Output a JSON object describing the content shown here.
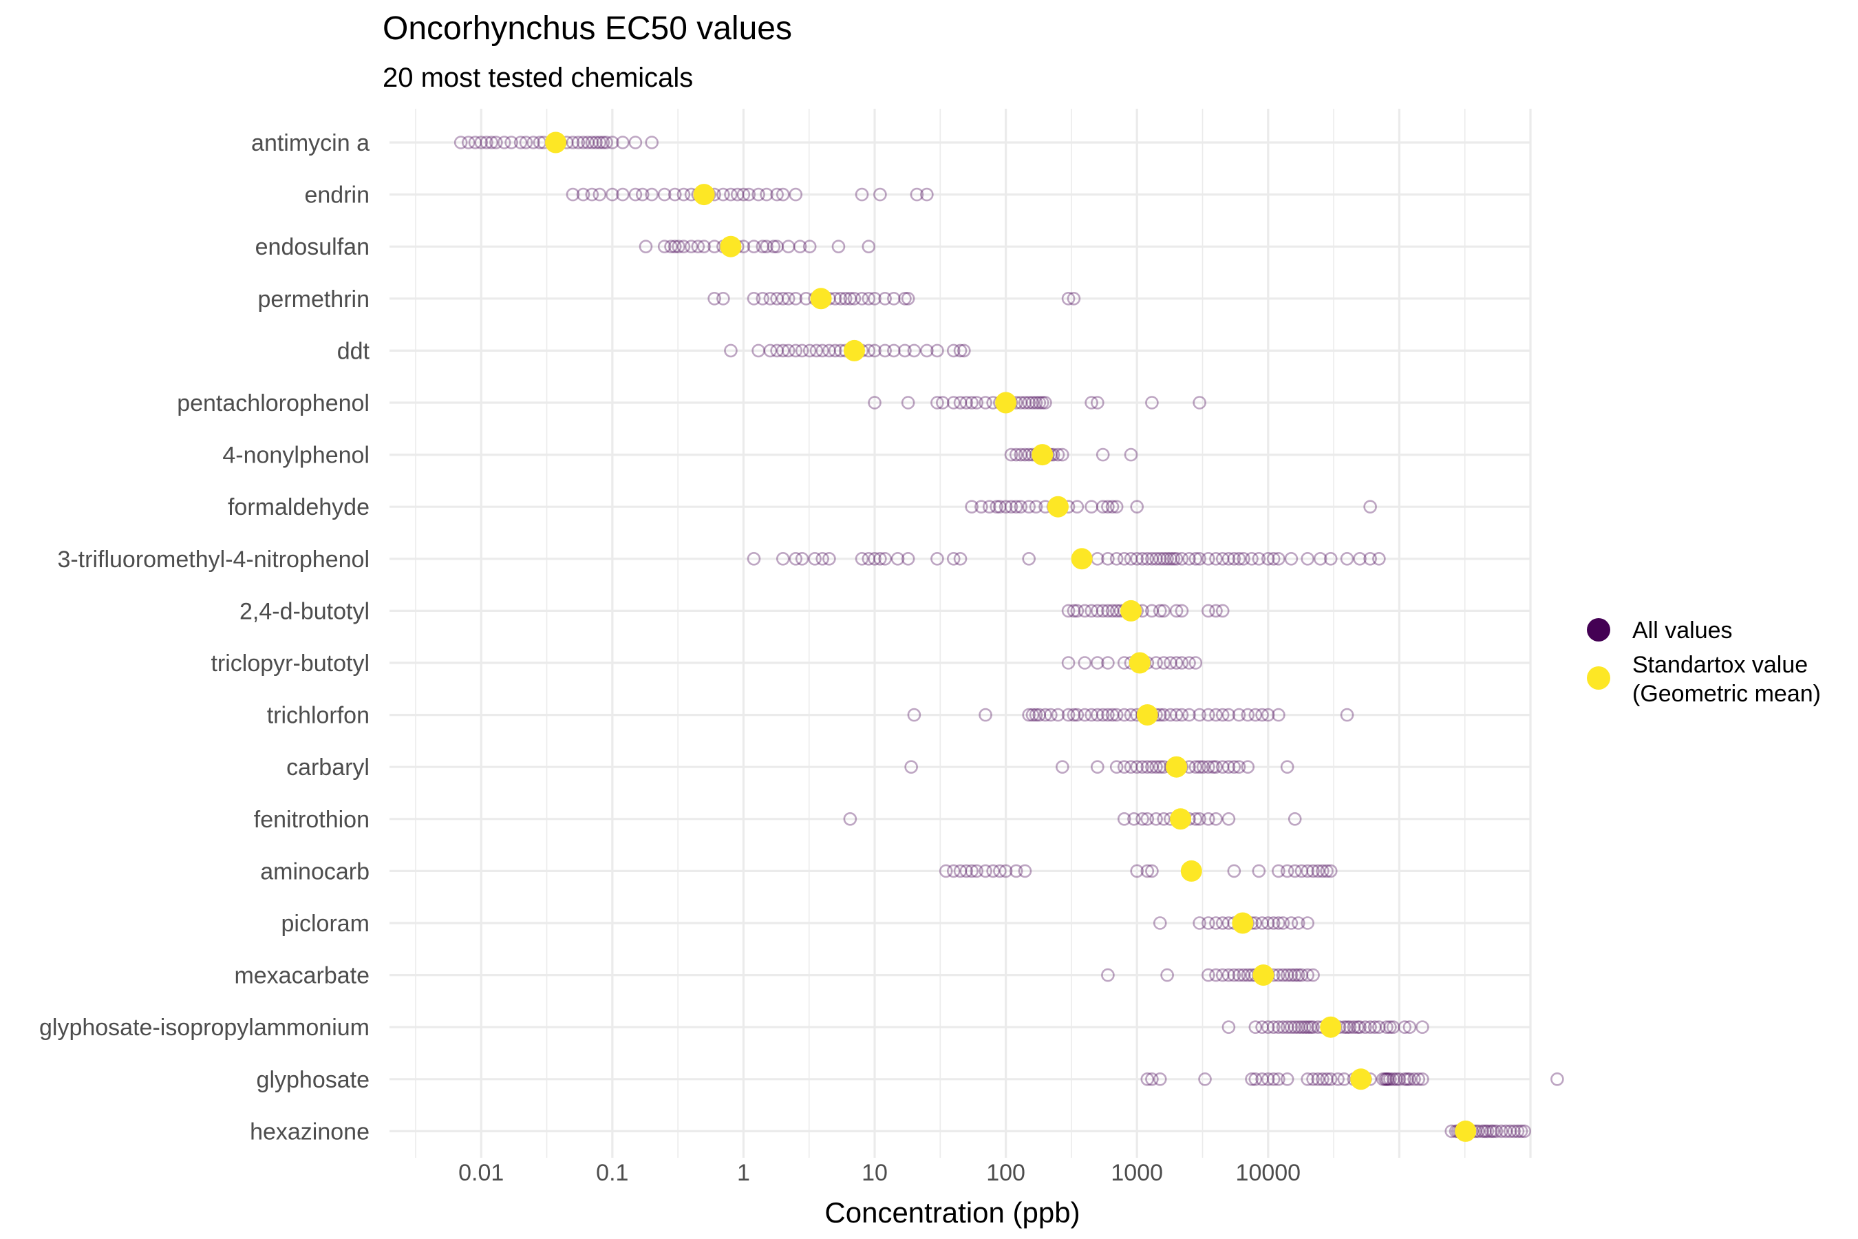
{
  "colors": {
    "all_values": "#440154",
    "standartox": "#FDE725",
    "grid": "#EBEBEB",
    "label": "#4D4D4D"
  },
  "chart_data": {
    "type": "scatter",
    "title": "Oncorhynchus EC50 values",
    "subtitle": "20 most tested chemicals",
    "xlabel": "Concentration (ppb)",
    "ylabel": "",
    "x_scale": "log10",
    "xlim": [
      0.002,
      1000000
    ],
    "x_tick_values": [
      0.01,
      0.1,
      1,
      10,
      100,
      1000,
      10000
    ],
    "x_tick_labels": [
      "0.01",
      "0.1",
      "1",
      "10",
      "100",
      "1000",
      "10000"
    ],
    "grid": true,
    "legend_position": "right",
    "legend": [
      {
        "key": "all",
        "label": "All values"
      },
      {
        "key": "mean",
        "label_lines": [
          "Standartox value",
          "(Geometric mean)"
        ]
      }
    ],
    "categories": [
      "antimycin a",
      "endrin",
      "endosulfan",
      "permethrin",
      "ddt",
      "pentachlorophenol",
      "4-nonylphenol",
      "formaldehyde",
      "3-trifluoromethyl-4-nitrophenol",
      "2,4-d-butotyl",
      "triclopyr-butotyl",
      "trichlorfon",
      "carbaryl",
      "fenitrothion",
      "aminocarb",
      "picloram",
      "mexacarbate",
      "glyphosate-isopropylammonium",
      "glyphosate",
      "hexazinone"
    ],
    "series": [
      {
        "name": "All values",
        "values_by_category": [
          [
            0.007,
            0.008,
            0.009,
            0.01,
            0.011,
            0.012,
            0.013,
            0.015,
            0.017,
            0.02,
            0.022,
            0.025,
            0.028,
            0.03,
            0.035,
            0.04,
            0.045,
            0.05,
            0.055,
            0.06,
            0.065,
            0.07,
            0.075,
            0.08,
            0.085,
            0.09,
            0.1,
            0.12,
            0.15,
            0.2
          ],
          [
            0.05,
            0.06,
            0.07,
            0.08,
            0.1,
            0.12,
            0.15,
            0.17,
            0.2,
            0.25,
            0.3,
            0.35,
            0.4,
            0.45,
            0.5,
            0.55,
            0.6,
            0.7,
            0.8,
            0.9,
            1.0,
            1.1,
            1.3,
            1.5,
            1.8,
            2.0,
            2.5,
            8,
            11,
            21,
            25
          ],
          [
            0.18,
            0.25,
            0.28,
            0.3,
            0.32,
            0.35,
            0.4,
            0.45,
            0.5,
            0.6,
            0.7,
            0.75,
            0.8,
            0.9,
            1.0,
            1.2,
            1.4,
            1.5,
            1.7,
            1.8,
            2.2,
            2.7,
            3.2,
            5.3,
            9
          ],
          [
            0.6,
            0.7,
            1.2,
            1.4,
            1.6,
            1.8,
            2.0,
            2.2,
            2.5,
            3.0,
            3.5,
            4.0,
            4.5,
            5.0,
            5.5,
            6.0,
            6.5,
            7.0,
            8,
            9,
            10,
            12,
            14,
            17,
            18,
            300,
            330
          ],
          [
            0.8,
            1.3,
            1.6,
            1.8,
            2.0,
            2.2,
            2.5,
            2.8,
            3.2,
            3.6,
            4.0,
            4.5,
            5.0,
            5.5,
            6.0,
            7,
            8,
            9,
            10,
            12,
            14,
            17,
            20,
            25,
            30,
            40,
            45,
            48
          ],
          [
            10,
            18,
            30,
            33,
            40,
            45,
            50,
            55,
            60,
            70,
            80,
            90,
            100,
            110,
            120,
            130,
            140,
            150,
            160,
            170,
            180,
            190,
            200,
            450,
            500,
            1300,
            3000
          ],
          [
            110,
            120,
            130,
            140,
            150,
            160,
            170,
            180,
            190,
            200,
            210,
            220,
            230,
            250,
            270,
            550,
            900
          ],
          [
            55,
            65,
            75,
            85,
            90,
            100,
            110,
            120,
            130,
            150,
            170,
            200,
            230,
            260,
            300,
            350,
            450,
            550,
            600,
            650,
            700,
            1000,
            60000
          ],
          [
            1.2,
            2.0,
            2.5,
            2.8,
            3.5,
            4.0,
            4.5,
            8,
            9,
            10,
            11,
            12,
            15,
            18,
            30,
            40,
            45,
            150,
            500,
            600,
            700,
            800,
            900,
            1000,
            1100,
            1200,
            1300,
            1400,
            1500,
            1600,
            1700,
            1800,
            1900,
            2000,
            2200,
            2500,
            2800,
            3000,
            3500,
            4000,
            4500,
            5000,
            5500,
            6000,
            6500,
            7500,
            8500,
            10000,
            11000,
            12000,
            15000,
            20000,
            25000,
            30000,
            40000,
            50000,
            60000,
            70000
          ],
          [
            300,
            330,
            350,
            400,
            450,
            500,
            550,
            600,
            650,
            700,
            750,
            800,
            900,
            1000,
            1100,
            1300,
            1500,
            1600,
            2000,
            2200,
            3500,
            4000,
            4500
          ],
          [
            300,
            400,
            500,
            600,
            800,
            900,
            1000,
            1200,
            1400,
            1600,
            1800,
            2000,
            2200,
            2500,
            2800
          ],
          [
            20,
            70,
            150,
            160,
            170,
            180,
            200,
            220,
            250,
            300,
            330,
            350,
            400,
            450,
            500,
            550,
            600,
            650,
            700,
            800,
            900,
            1000,
            1100,
            1200,
            1300,
            1400,
            1500,
            1600,
            1800,
            2000,
            2200,
            2500,
            3000,
            3500,
            4000,
            4500,
            5000,
            6000,
            7000,
            8000,
            9000,
            10000,
            12000,
            40000
          ],
          [
            19,
            270,
            500,
            700,
            800,
            900,
            1000,
            1100,
            1200,
            1300,
            1400,
            1500,
            1600,
            1800,
            2000,
            2200,
            2500,
            2800,
            3000,
            3200,
            3500,
            3800,
            4000,
            4500,
            5000,
            5500,
            6000,
            7000,
            14000
          ],
          [
            6.5,
            800,
            950,
            1100,
            1200,
            1400,
            1600,
            1800,
            2000,
            2200,
            2500,
            2800,
            3000,
            3500,
            4000,
            5000,
            16000
          ],
          [
            35,
            40,
            45,
            50,
            55,
            60,
            70,
            80,
            90,
            100,
            120,
            140,
            1000,
            1200,
            1300,
            5500,
            8500,
            12000,
            14000,
            16000,
            18000,
            20000,
            22000,
            24000,
            26000,
            28000,
            30000
          ],
          [
            1500,
            3000,
            3500,
            4000,
            4500,
            5000,
            5500,
            6000,
            6500,
            7000,
            7500,
            8000,
            9000,
            10000,
            11000,
            12000,
            13000,
            15000,
            17000,
            20000
          ],
          [
            600,
            1700,
            3500,
            4000,
            4500,
            5000,
            5500,
            6000,
            6500,
            7000,
            7500,
            8000,
            8500,
            9000,
            10000,
            11000,
            12000,
            13000,
            14000,
            15000,
            16000,
            17000,
            18000,
            20000,
            22000
          ],
          [
            5000,
            8000,
            9000,
            10000,
            11000,
            12000,
            13000,
            14000,
            15000,
            16000,
            17000,
            18000,
            19000,
            20000,
            21000,
            22000,
            24000,
            26000,
            28000,
            30000,
            32000,
            35000,
            38000,
            40000,
            42000,
            45000,
            48000,
            50000,
            55000,
            60000,
            65000,
            70000,
            80000,
            85000,
            90000,
            110000,
            120000,
            150000
          ],
          [
            1200,
            1300,
            1500,
            3300,
            7500,
            8000,
            9000,
            10000,
            11000,
            12000,
            14000,
            20000,
            22000,
            24000,
            26000,
            28000,
            30000,
            34000,
            38000,
            45000,
            55000,
            60000,
            75000,
            78000,
            80000,
            82000,
            85000,
            90000,
            95000,
            100000,
            110000,
            115000,
            120000,
            130000,
            140000,
            150000,
            1600000
          ],
          [
            250000,
            270000,
            280000,
            290000,
            300000,
            310000,
            330000,
            360000,
            380000,
            400000,
            430000,
            450000,
            470000,
            500000,
            520000,
            550000,
            600000,
            650000,
            700000,
            750000,
            800000,
            850000,
            900000
          ]
        ]
      },
      {
        "name": "Standartox value (Geometric mean)",
        "values": [
          0.037,
          0.5,
          0.8,
          3.9,
          7,
          100,
          190,
          250,
          380,
          900,
          1050,
          1200,
          2000,
          2150,
          2600,
          6400,
          9200,
          30000,
          51000,
          320000
        ]
      }
    ]
  }
}
